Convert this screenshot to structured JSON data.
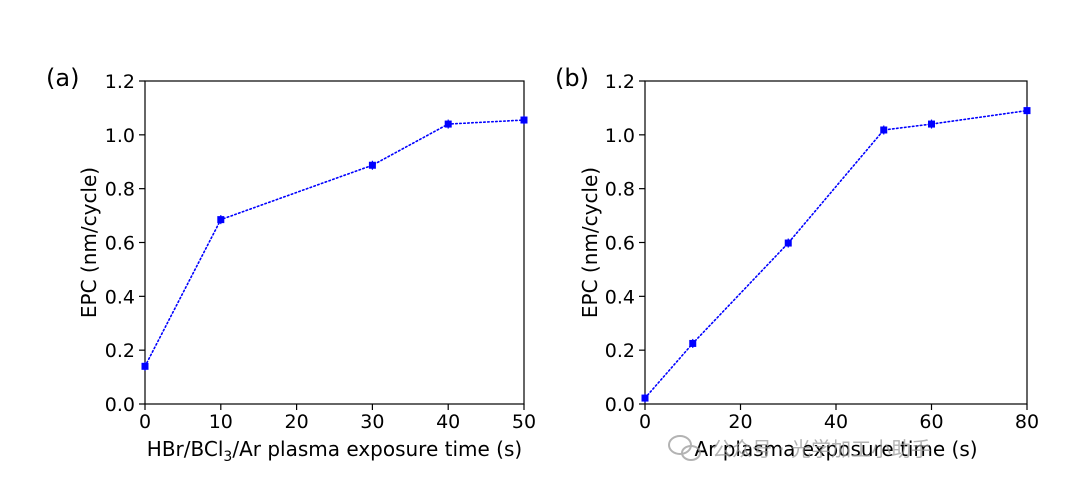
{
  "chart_data": [
    {
      "type": "line",
      "panel_label": "(a)",
      "xlabel_parts": [
        "HBr/BCl",
        "3",
        "/Ar plasma exposure time (s)"
      ],
      "ylabel": "EPC (nm/cycle)",
      "xlim": [
        0,
        50
      ],
      "ylim": [
        0,
        1.2
      ],
      "xticks": [
        0,
        10,
        20,
        30,
        40,
        50
      ],
      "xtick_labels": [
        "0",
        "10",
        "20",
        "30",
        "40",
        "50"
      ],
      "yticks": [
        0,
        0.2,
        0.4,
        0.6,
        0.8,
        1.0,
        1.2
      ],
      "ytick_labels": [
        "0.0",
        "0.2",
        "0.4",
        "0.6",
        "0.8",
        "1.0",
        "1.2"
      ],
      "grid": false,
      "series": [
        {
          "name": "EPC",
          "color": "#0000ff",
          "line_style": "dotted",
          "marker": "square",
          "x": [
            0,
            10,
            30,
            40,
            50
          ],
          "y": [
            0.14,
            0.685,
            0.887,
            1.04,
            1.055
          ]
        }
      ]
    },
    {
      "type": "line",
      "panel_label": "(b)",
      "xlabel_parts": [
        "Ar plasma exposure time (s)"
      ],
      "ylabel": "EPC (nm/cycle)",
      "xlim": [
        0,
        80
      ],
      "ylim": [
        0,
        1.2
      ],
      "xticks": [
        0,
        20,
        40,
        60,
        80
      ],
      "xtick_labels": [
        "0",
        "20",
        "40",
        "60",
        "80"
      ],
      "yticks": [
        0,
        0.2,
        0.4,
        0.6,
        0.8,
        1.0,
        1.2
      ],
      "ytick_labels": [
        "0.0",
        "0.2",
        "0.4",
        "0.6",
        "0.8",
        "1.0",
        "1.2"
      ],
      "grid": false,
      "series": [
        {
          "name": "EPC",
          "color": "#0000ff",
          "line_style": "dotted",
          "marker": "square",
          "x": [
            0,
            10,
            30,
            50,
            60,
            80
          ],
          "y": [
            0.022,
            0.225,
            0.598,
            1.018,
            1.04,
            1.09
          ]
        }
      ]
    }
  ],
  "watermark": {
    "text": "公众号 · 光学加工小助手"
  }
}
